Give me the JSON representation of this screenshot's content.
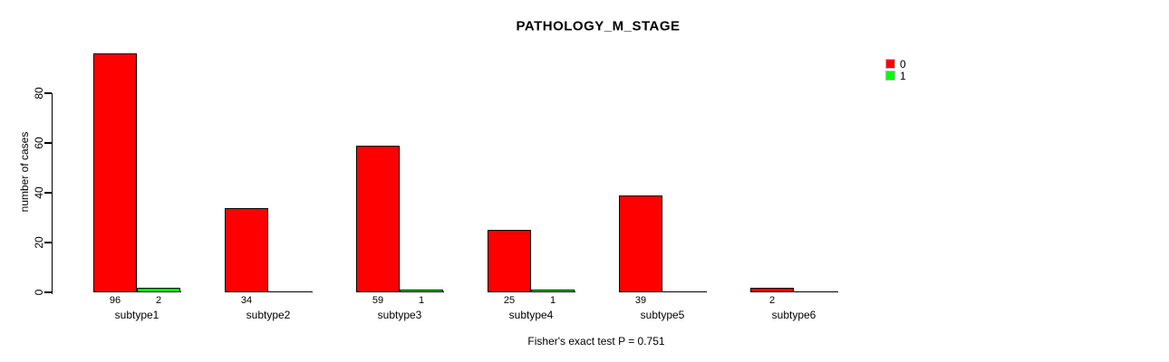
{
  "colors": {
    "background": "#FFFFFF",
    "axis": "#000000",
    "series0": "#FF0000",
    "series1": "#00FF00"
  },
  "chart_data": {
    "type": "bar",
    "title": "PATHOLOGY_M_STAGE",
    "xlabel": "",
    "ylabel": "number of cases",
    "footer": "Fisher's exact test P = 0.751",
    "categories": [
      "subtype1",
      "subtype2",
      "subtype3",
      "subtype4",
      "subtype5",
      "subtype6"
    ],
    "series": [
      {
        "name": "0",
        "color": "#FF0000",
        "values": [
          96,
          34,
          59,
          25,
          39,
          2
        ]
      },
      {
        "name": "1",
        "color": "#00FF00",
        "values": [
          2,
          0,
          1,
          1,
          0,
          0
        ]
      }
    ],
    "yticks": [
      0,
      20,
      40,
      60,
      80
    ],
    "ylim": [
      0,
      96
    ],
    "grid": false,
    "legend_position": "topright",
    "bar_value_labels_shown_when_nonzero": true
  }
}
